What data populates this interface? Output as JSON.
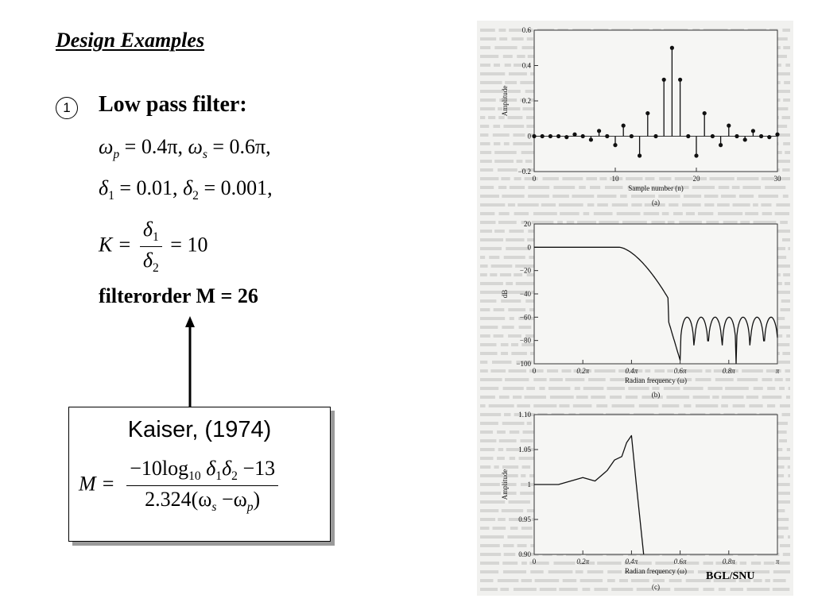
{
  "slide": {
    "title": "Design Examples",
    "item_number": "1",
    "heading": "Low pass filter:",
    "eq1": "ω_p = 0.4π, ω_s = 0.6π,",
    "eq1_parts": {
      "w": "ω",
      "p": "p",
      "wp_val": " = 0.4π, ",
      "s": "s",
      "ws_val": " = 0.6π,"
    },
    "eq2_parts": {
      "d": "δ",
      "one": "1",
      "d1_val": " = 0.01, ",
      "two": "2",
      "d2_val": " = 0.001,"
    },
    "eq3_parts": {
      "k": "K = ",
      "num": "δ",
      "num_sub": "1",
      "den": "δ",
      "den_sub": "2",
      "val": " = 10"
    },
    "filter_order": "filterorder M = 26",
    "kaiser": {
      "title": "Kaiser, (1974)",
      "lhs": "M = ",
      "num_a": "−10log",
      "num_sub10": "10",
      "num_b": " δ",
      "num_s1": "1",
      "num_c": "δ",
      "num_s2": "2",
      "num_d": " −13",
      "den_a": "2.324(ω",
      "den_s": "s",
      "den_b": " −ω",
      "den_p": "p",
      "den_c": ")"
    },
    "credit": "BGL/SNU"
  },
  "chart_data": [
    {
      "type": "stem",
      "caption": "(a)",
      "xlabel": "Sample number (n)",
      "ylabel": "Amplitude",
      "xlim": [
        0,
        30
      ],
      "ylim": [
        -0.2,
        0.6
      ],
      "xticks": [
        "0",
        "10",
        "20",
        "30"
      ],
      "yticks": [
        "−0.2",
        "0",
        "0.2",
        "0.4",
        "0.6"
      ],
      "x": [
        0,
        1,
        2,
        3,
        4,
        5,
        6,
        7,
        8,
        9,
        10,
        11,
        12,
        13,
        14,
        15,
        16,
        17,
        18,
        19,
        20,
        21,
        22,
        23,
        24,
        25,
        26,
        27,
        28,
        29,
        30
      ],
      "y": [
        0,
        0,
        0,
        0,
        -0.005,
        0.01,
        0,
        -0.02,
        0.03,
        0,
        -0.05,
        0.06,
        0,
        -0.11,
        0.13,
        0,
        0.32,
        0.5,
        0.32,
        0,
        -0.11,
        0.13,
        0,
        -0.05,
        0.06,
        0,
        -0.02,
        0.03,
        0,
        -0.005,
        0.01
      ]
    },
    {
      "type": "line",
      "caption": "(b)",
      "xlabel": "Radian frequency (ω)",
      "ylabel": "dB",
      "xlim": [
        0,
        1
      ],
      "ylim": [
        -100,
        20
      ],
      "xticks": [
        "0",
        "0.2π",
        "0.4π",
        "0.6π",
        "0.8π",
        "π"
      ],
      "yticks": [
        "20",
        "0",
        "−20",
        "−40",
        "−60",
        "−80",
        "−100"
      ],
      "description_points": {
        "passband_db": 0,
        "stopband_peak_db": -60,
        "edge_from": 0.4,
        "edge_to": 0.6
      }
    },
    {
      "type": "line",
      "caption": "(c)",
      "xlabel": "Radian frequency (ω)",
      "ylabel": "Amplitude",
      "xlim": [
        0,
        1
      ],
      "ylim": [
        0.9,
        1.1
      ],
      "xticks": [
        "0",
        "0.2π",
        "0.4π",
        "0.6π",
        "0.8π",
        "π"
      ],
      "yticks": [
        "1.10",
        "1.05",
        "1",
        "0.95",
        "0.90"
      ],
      "x": [
        0,
        0.05,
        0.1,
        0.15,
        0.2,
        0.25,
        0.3,
        0.33,
        0.36,
        0.38,
        0.4,
        0.42,
        0.45
      ],
      "y": [
        1.0,
        1.0,
        1.0,
        1.005,
        1.01,
        1.005,
        1.02,
        1.035,
        1.04,
        1.06,
        1.07,
        1.0,
        0.9
      ]
    }
  ]
}
